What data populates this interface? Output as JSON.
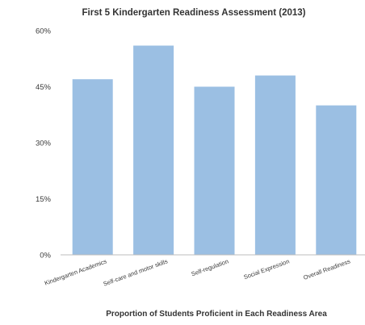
{
  "chart_data": {
    "type": "bar",
    "title": "First 5 Kindergarten Readiness Assessment (2013)",
    "xlabel": "Proportion of Students Proficient in Each Readiness Area",
    "ylabel": "",
    "categories": [
      "Kindergarten Academics",
      "Self-care and motor skills",
      "Self-regulation",
      "Social Expression",
      "Overall Readiness"
    ],
    "values": [
      47,
      56,
      45,
      48,
      40
    ],
    "value_unit": "percent",
    "ylim": [
      0,
      60
    ],
    "yticks": [
      0,
      15,
      30,
      45,
      60
    ],
    "ytick_labels": [
      "0%",
      "15%",
      "30%",
      "45%",
      "60%"
    ],
    "grid": false,
    "legend": "none",
    "colors": {
      "bar": "#9bbfe3",
      "axis": "#bdbdbd",
      "text": "#3a3a3a"
    }
  }
}
